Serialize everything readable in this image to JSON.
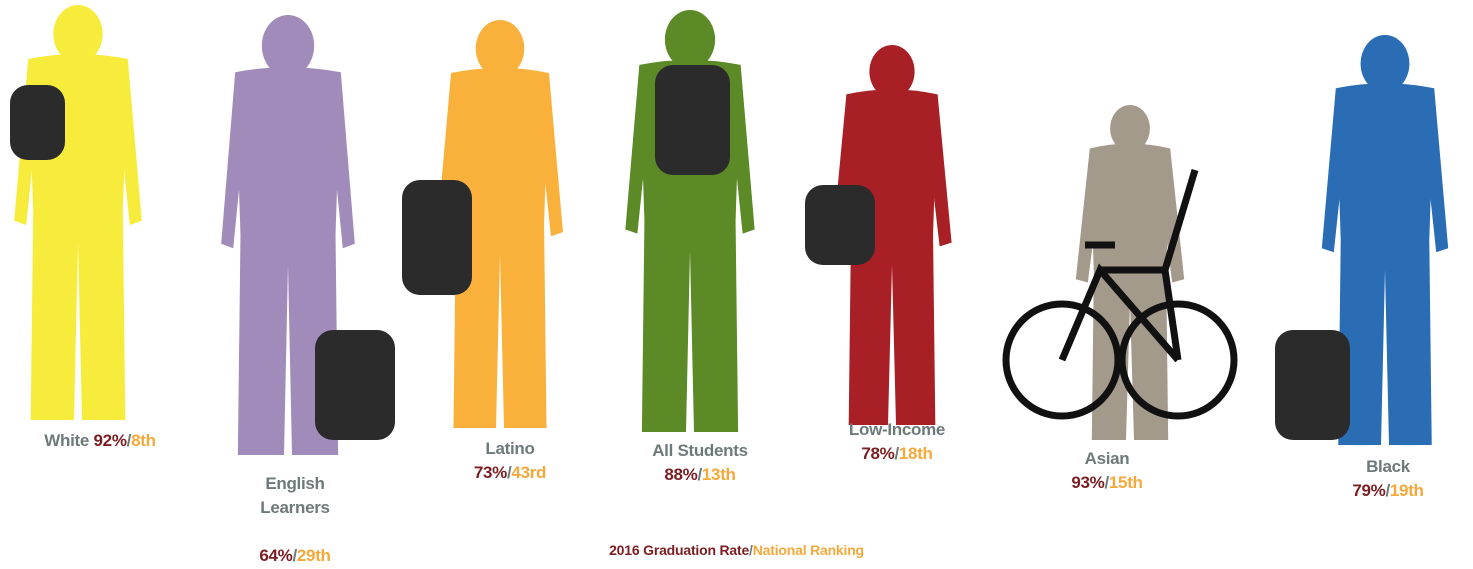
{
  "separator": "/",
  "groups": [
    {
      "label": "White",
      "rate": "92%",
      "rank": "8th"
    },
    {
      "label": "English Learners",
      "rate": "64%",
      "rank": "29th"
    },
    {
      "label": "Latino",
      "rate": "73%",
      "rank": "43rd"
    },
    {
      "label": "All Students",
      "rate": "88%",
      "rank": "13th"
    },
    {
      "label": "Low-Income",
      "rate": "78%",
      "rank": "18th"
    },
    {
      "label": "Asian",
      "rate": "93%",
      "rank": "15th"
    },
    {
      "label": "Black",
      "rate": "79%",
      "rank": "19th"
    }
  ],
  "legend": {
    "rate": "2016 Graduation Rate",
    "rank": "National Ranking"
  }
}
